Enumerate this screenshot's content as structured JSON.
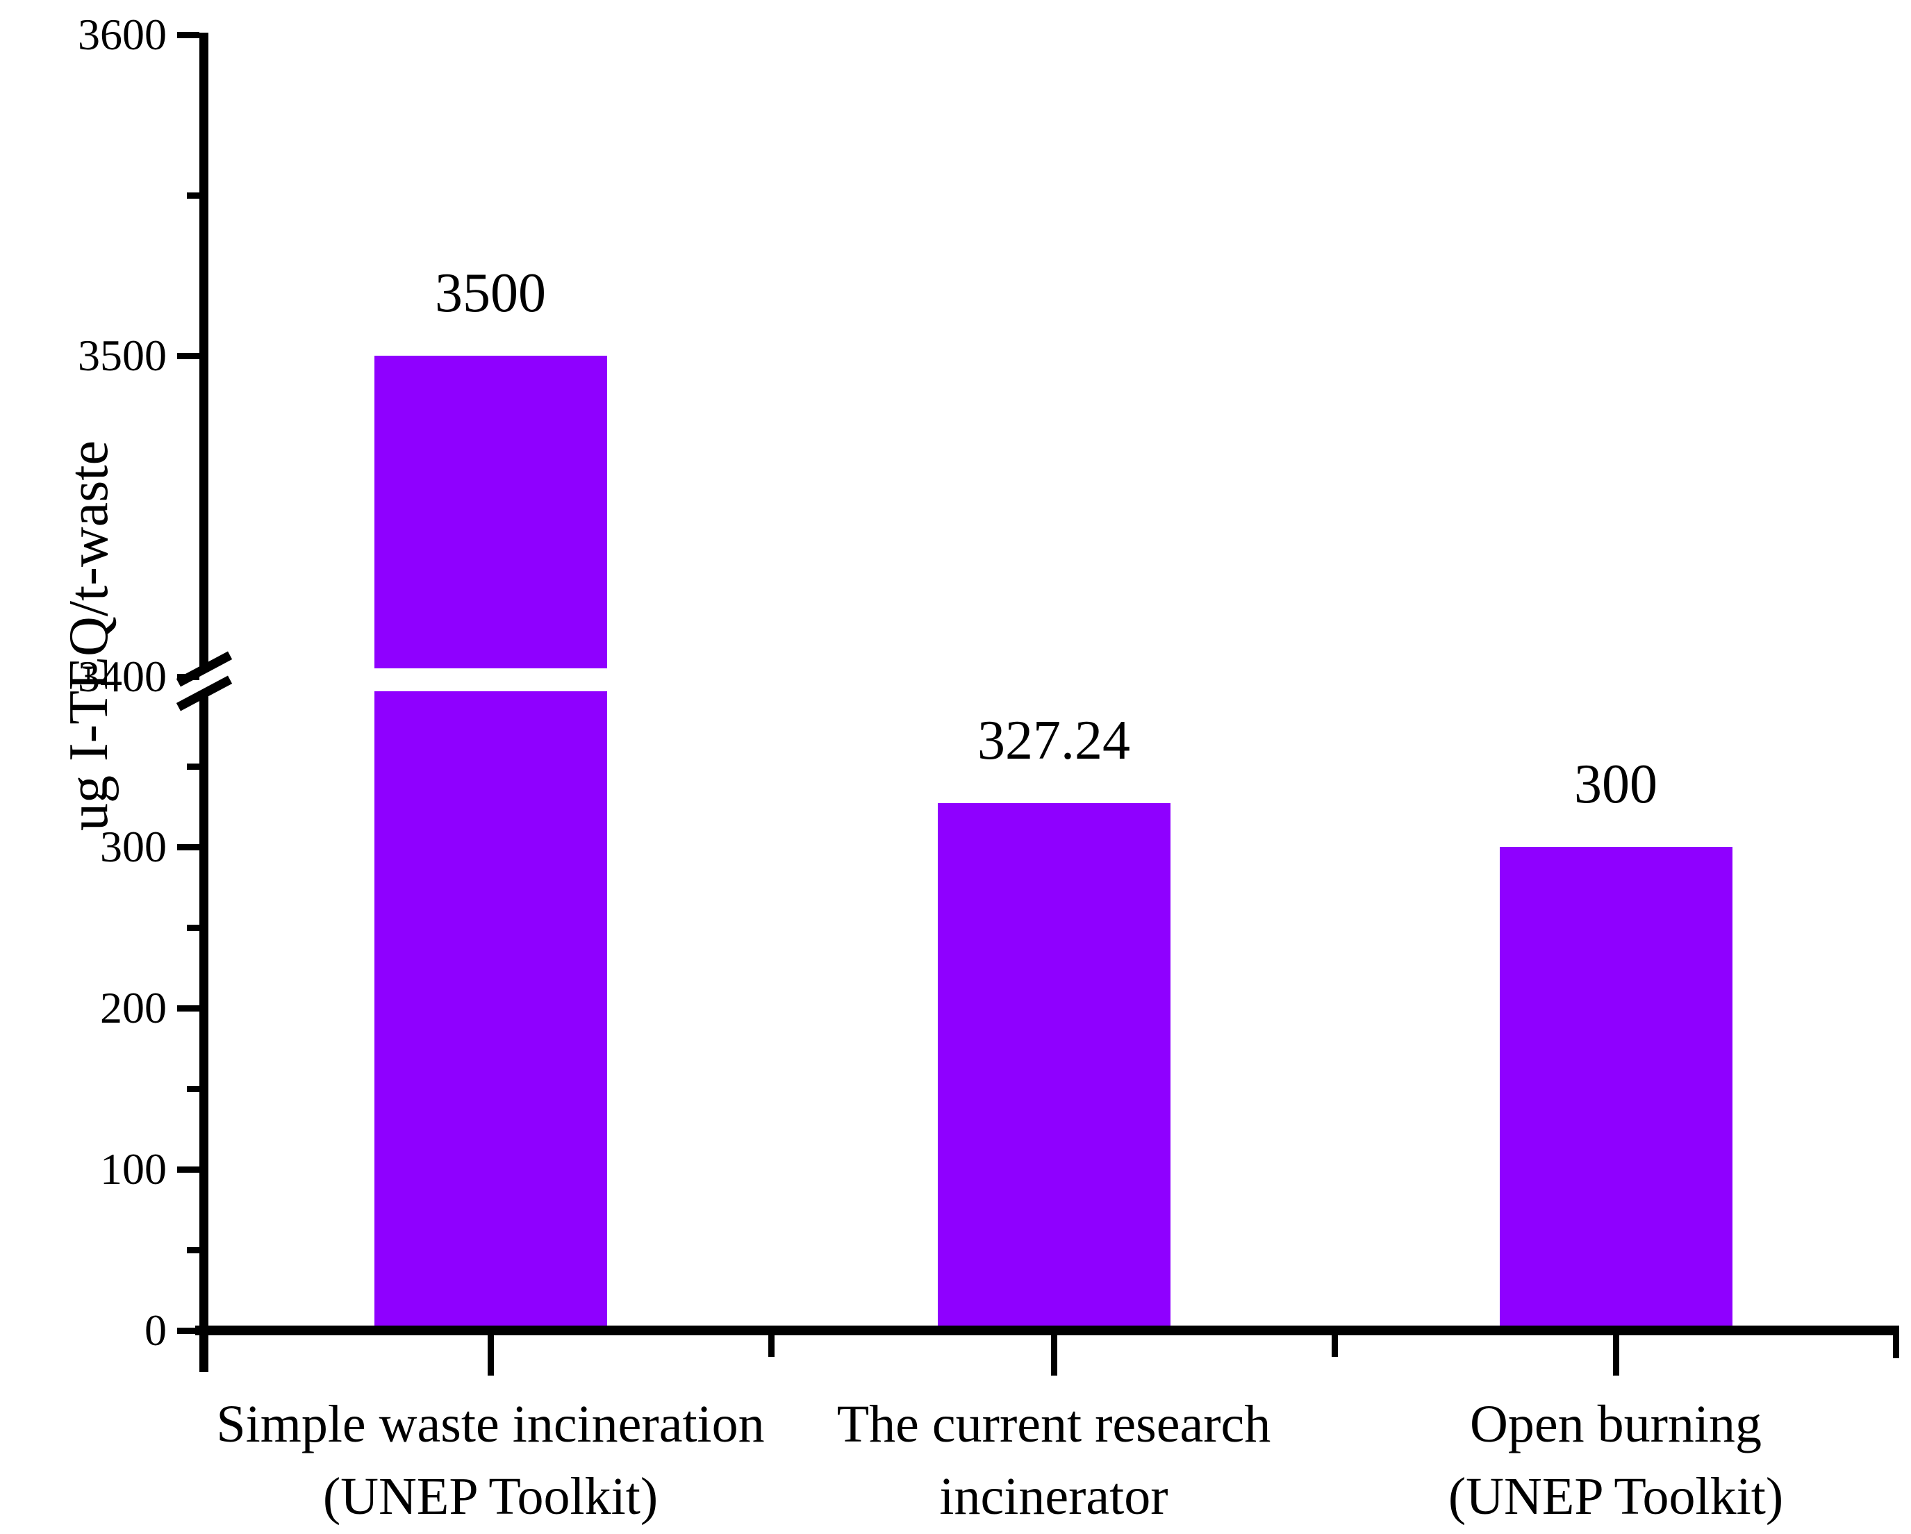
{
  "chart_data": {
    "type": "bar",
    "title": "",
    "ylabel": "ug I-TEQ/t-waste",
    "xlabel": "",
    "categories": [
      [
        "Simple waste incineration",
        "(UNEP Toolkit)"
      ],
      [
        "The current research",
        "incinerator"
      ],
      [
        "Open burning",
        "(UNEP Toolkit)"
      ]
    ],
    "values": [
      3500,
      327.24,
      300
    ],
    "value_labels": [
      "3500",
      "327.24",
      "300"
    ],
    "bar_color": "#8F00FF",
    "axis_color": "#000000",
    "background": "#FFFFFF",
    "grid": false,
    "legend": null,
    "y_axis": {
      "broken": true,
      "lower_segment": {
        "range": [
          0,
          380
        ],
        "major_ticks": [
          0,
          100,
          200,
          300
        ],
        "minor_ticks": [
          50,
          150,
          250,
          350
        ]
      },
      "upper_segment": {
        "range": [
          3400,
          3600
        ],
        "major_ticks": [
          3400,
          3500,
          3600
        ],
        "minor_ticks": [
          3550
        ]
      }
    }
  }
}
